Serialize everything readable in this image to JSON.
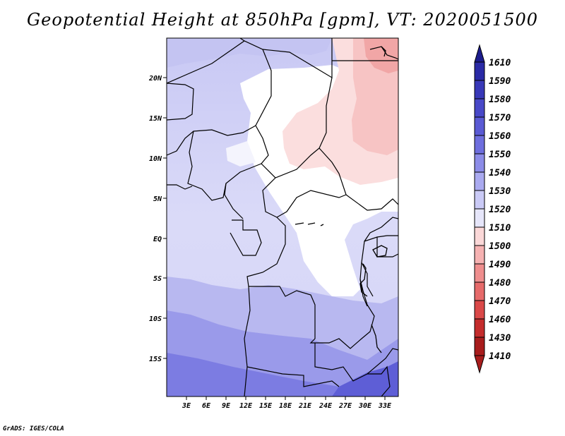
{
  "title": "Geopotential Height at 850hPa [gpm], VT: 2020051500",
  "credit": "GrADS: IGES/COLA",
  "map": {
    "lat_labels": [
      "20N",
      "15N",
      "10N",
      "5N",
      "EQ",
      "5S",
      "10S",
      "15S"
    ],
    "lon_labels": [
      "3E",
      "6E",
      "9E",
      "12E",
      "15E",
      "18E",
      "21E",
      "24E",
      "27E",
      "30E",
      "33E"
    ]
  },
  "colorbar": {
    "levels": [
      "1610",
      "1590",
      "1580",
      "1570",
      "1560",
      "1550",
      "1540",
      "1530",
      "1520",
      "1510",
      "1500",
      "1490",
      "1480",
      "1470",
      "1460",
      "1430",
      "1410"
    ],
    "colors": [
      "#1c1c8c",
      "#2a2aa6",
      "#3838b8",
      "#4848c8",
      "#5a5ad4",
      "#6e6ede",
      "#8c8ce8",
      "#aaaaf0",
      "#cacaf6",
      "#e6e6fa",
      "#fbd8d8",
      "#f6b2b2",
      "#ef8e8e",
      "#e66a6a",
      "#da4848",
      "#c42c2c",
      "#a81c1c"
    ]
  },
  "chart_data": {
    "type": "heatmap",
    "title": "Geopotential Height at 850hPa [gpm], VT: 2020051500",
    "variable": "Geopotential Height at 850hPa",
    "units": "gpm",
    "valid_time": "2020051500",
    "x_ticks": [
      "3E",
      "6E",
      "9E",
      "12E",
      "15E",
      "18E",
      "21E",
      "24E",
      "27E",
      "30E",
      "33E"
    ],
    "y_ticks": [
      "20N",
      "15N",
      "10N",
      "5N",
      "EQ",
      "5S",
      "10S",
      "15S"
    ],
    "xlim": [
      0,
      35
    ],
    "ylim": [
      -20,
      25
    ],
    "contour_levels": [
      1410,
      1430,
      1460,
      1470,
      1480,
      1490,
      1500,
      1510,
      1520,
      1530,
      1540,
      1550,
      1560,
      1570,
      1580,
      1590,
      1610
    ]
  }
}
